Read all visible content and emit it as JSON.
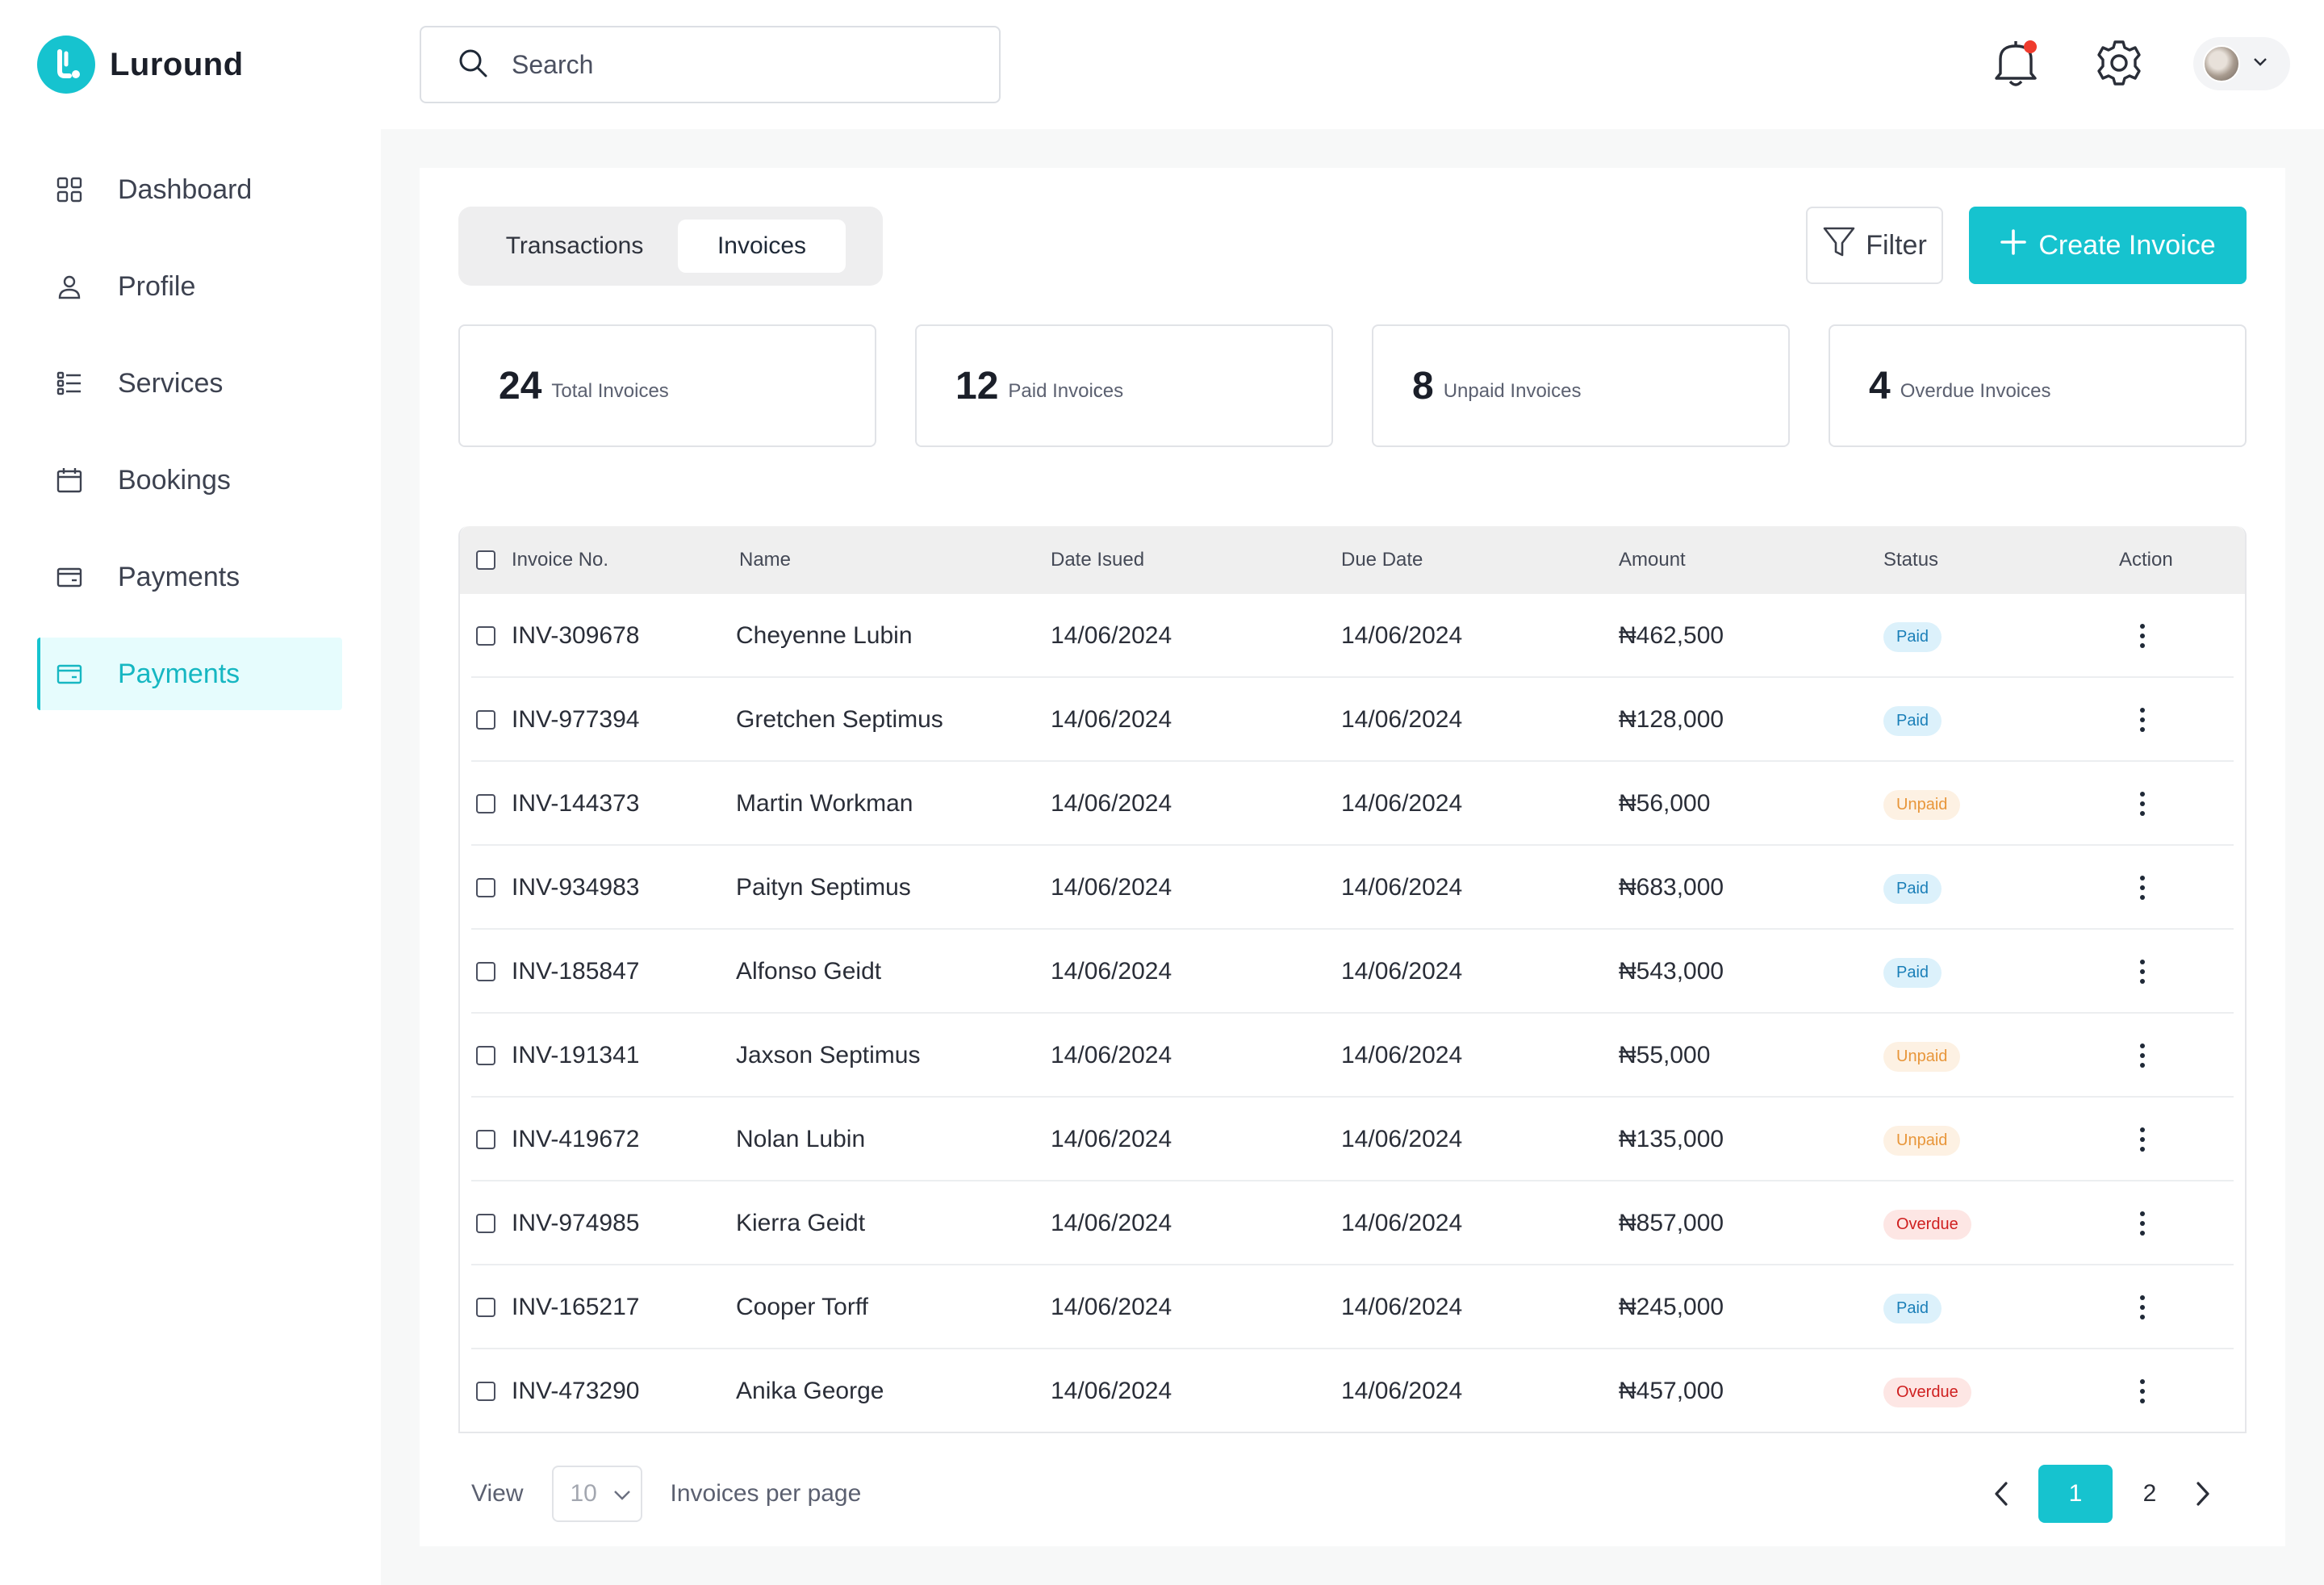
{
  "brand": {
    "name": "Luround",
    "accent": "#16c3cf"
  },
  "sidebar": {
    "items": [
      {
        "label": "Dashboard",
        "icon": "grid-icon",
        "active": false
      },
      {
        "label": "Profile",
        "icon": "user-icon",
        "active": false
      },
      {
        "label": "Services",
        "icon": "list-icon",
        "active": false
      },
      {
        "label": "Bookings",
        "icon": "calendar-icon",
        "active": false
      },
      {
        "label": "Payments",
        "icon": "wallet-icon",
        "active": false
      },
      {
        "label": "Payments",
        "icon": "wallet-icon",
        "active": true
      }
    ]
  },
  "topbar": {
    "search_placeholder": "Search",
    "notification_dot_color": "#ef3b2d"
  },
  "tabs": [
    {
      "label": "Transactions",
      "active": false
    },
    {
      "label": "Invoices",
      "active": true
    }
  ],
  "actions": {
    "filter_label": "Filter",
    "create_label": "Create Invoice"
  },
  "stats": [
    {
      "value": "24",
      "label": "Total Invoices"
    },
    {
      "value": "12",
      "label": "Paid Invoices"
    },
    {
      "value": "8",
      "label": "Unpaid Invoices"
    },
    {
      "value": "4",
      "label": "Overdue Invoices"
    }
  ],
  "table": {
    "headers": {
      "invoice_no": "Invoice No.",
      "name": "Name",
      "date_issued": "Date Isued",
      "due_date": "Due Date",
      "amount": "Amount",
      "status": "Status",
      "action": "Action"
    },
    "rows": [
      {
        "invoice_no": "INV-309678",
        "name": "Cheyenne Lubin",
        "date_issued": "14/06/2024",
        "due_date": "14/06/2024",
        "amount": "₦462,500",
        "status": "Paid"
      },
      {
        "invoice_no": "INV-977394",
        "name": "Gretchen Septimus",
        "date_issued": "14/06/2024",
        "due_date": "14/06/2024",
        "amount": "₦128,000",
        "status": "Paid"
      },
      {
        "invoice_no": "INV-144373",
        "name": "Martin Workman",
        "date_issued": "14/06/2024",
        "due_date": "14/06/2024",
        "amount": "₦56,000",
        "status": "Unpaid"
      },
      {
        "invoice_no": "INV-934983",
        "name": "Paityn Septimus",
        "date_issued": "14/06/2024",
        "due_date": "14/06/2024",
        "amount": "₦683,000",
        "status": "Paid"
      },
      {
        "invoice_no": "INV-185847",
        "name": "Alfonso Geidt",
        "date_issued": "14/06/2024",
        "due_date": "14/06/2024",
        "amount": "₦543,000",
        "status": "Paid"
      },
      {
        "invoice_no": "INV-191341",
        "name": "Jaxson Septimus",
        "date_issued": "14/06/2024",
        "due_date": "14/06/2024",
        "amount": "₦55,000",
        "status": "Unpaid"
      },
      {
        "invoice_no": "INV-419672",
        "name": "Nolan Lubin",
        "date_issued": "14/06/2024",
        "due_date": "14/06/2024",
        "amount": "₦135,000",
        "status": "Unpaid"
      },
      {
        "invoice_no": "INV-974985",
        "name": "Kierra Geidt",
        "date_issued": "14/06/2024",
        "due_date": "14/06/2024",
        "amount": "₦857,000",
        "status": "Overdue"
      },
      {
        "invoice_no": "INV-165217",
        "name": "Cooper Torff",
        "date_issued": "14/06/2024",
        "due_date": "14/06/2024",
        "amount": "₦245,000",
        "status": "Paid"
      },
      {
        "invoice_no": "INV-473290",
        "name": "Anika George",
        "date_issued": "14/06/2024",
        "due_date": "14/06/2024",
        "amount": "₦457,000",
        "status": "Overdue"
      }
    ]
  },
  "pagination": {
    "view_label": "View",
    "per_page_value": "10",
    "per_page_label": "Invoices per page",
    "pages": [
      "1",
      "2"
    ],
    "current_page": "1"
  },
  "status_colors": {
    "paid": "#1a7fb8",
    "unpaid": "#e8963a",
    "overdue": "#cf1f1f"
  }
}
